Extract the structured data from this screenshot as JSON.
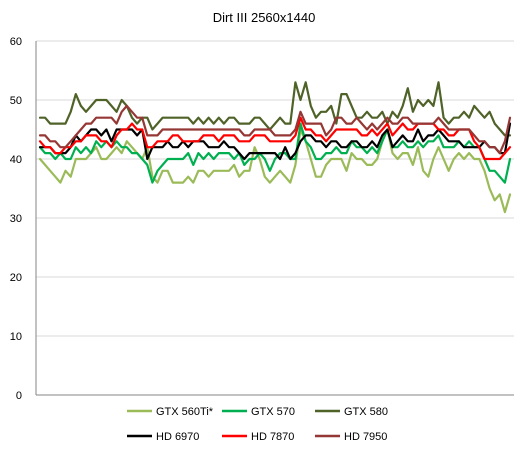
{
  "chart_data": {
    "type": "line",
    "title": "Dirt III 2560x1440",
    "xlabel": "",
    "ylabel": "",
    "ylim": [
      0,
      60
    ],
    "yticks": [
      "0",
      "10",
      "20",
      "30",
      "40",
      "50",
      "60"
    ],
    "grid": "horizontal",
    "legend_position": "bottom",
    "series": [
      {
        "name": "GTX 560Ti*",
        "color": "#9bbb59",
        "values": [
          40,
          39,
          38,
          37,
          36,
          38,
          37,
          40,
          40,
          40,
          41,
          42,
          40,
          40,
          41,
          42,
          41,
          43,
          42,
          41,
          40,
          42,
          37,
          36,
          38,
          38,
          36,
          36,
          36,
          37,
          36,
          38,
          38,
          37,
          38,
          38,
          38,
          38,
          39,
          37,
          38,
          38,
          42,
          40,
          37,
          36,
          37,
          38,
          37,
          36,
          39,
          45,
          43,
          40,
          37,
          37,
          39,
          40,
          40,
          40,
          38,
          41,
          40,
          40,
          39,
          39,
          40,
          43,
          45,
          41,
          40,
          41,
          41,
          39,
          42,
          38,
          37,
          40,
          42,
          40,
          38,
          40,
          41,
          40,
          41,
          40,
          40,
          38,
          35,
          33,
          34,
          31,
          34
        ]
      },
      {
        "name": "GTX 570",
        "color": "#00b050",
        "values": [
          42,
          41,
          41,
          40,
          41,
          40,
          40,
          42,
          41,
          42,
          41,
          43,
          42,
          43,
          42,
          43,
          42,
          42,
          41,
          41,
          40,
          39,
          36,
          38,
          39,
          40,
          40,
          40,
          40,
          41,
          39,
          41,
          40,
          41,
          40,
          41,
          41,
          41,
          40,
          41,
          39,
          40,
          40,
          41,
          40,
          38,
          40,
          41,
          41,
          40,
          40,
          46,
          43,
          42,
          40,
          40,
          41,
          41,
          42,
          41,
          41,
          43,
          42,
          42,
          41,
          42,
          41,
          43,
          45,
          42,
          42,
          43,
          42,
          42,
          43,
          42,
          43,
          43,
          44,
          42,
          42,
          42,
          43,
          42,
          43,
          42,
          42,
          40,
          38,
          38,
          37,
          36,
          40
        ]
      },
      {
        "name": "GTX 580",
        "color": "#4f6228",
        "values": [
          47,
          47,
          46,
          46,
          46,
          46,
          48,
          51,
          49,
          48,
          49,
          50,
          50,
          50,
          49,
          48,
          50,
          49,
          47,
          46,
          47,
          47,
          45,
          46,
          47,
          47,
          47,
          47,
          47,
          47,
          46,
          47,
          46,
          47,
          46,
          47,
          46,
          47,
          47,
          46,
          46,
          46,
          47,
          47,
          46,
          45,
          46,
          47,
          46,
          46,
          53,
          50,
          53,
          49,
          47,
          48,
          48,
          49,
          46,
          51,
          51,
          49,
          47,
          47,
          48,
          47,
          47,
          48,
          46,
          48,
          47,
          49,
          52,
          48,
          50,
          49,
          50,
          49,
          53,
          47,
          46,
          47,
          47,
          48,
          47,
          49,
          48,
          47,
          48,
          46,
          45,
          44,
          44
        ]
      },
      {
        "name": "HD 6970",
        "color": "#000000",
        "values": [
          42,
          42,
          42,
          41,
          41,
          41,
          42,
          44,
          43,
          44,
          45,
          45,
          44,
          45,
          43,
          45,
          45,
          45,
          45,
          44,
          45,
          40,
          42,
          42,
          42,
          43,
          42,
          42,
          43,
          42,
          43,
          43,
          43,
          42,
          42,
          42,
          43,
          42,
          42,
          41,
          40,
          41,
          41,
          41,
          41,
          41,
          41,
          40,
          42,
          40,
          41,
          43,
          44,
          44,
          43,
          43,
          42,
          43,
          43,
          42,
          42,
          43,
          43,
          42,
          42,
          43,
          42,
          44,
          45,
          42,
          43,
          44,
          43,
          43,
          45,
          43,
          44,
          44,
          45,
          44,
          43,
          43,
          43,
          42,
          42,
          42,
          42,
          43,
          42,
          42,
          41,
          41,
          46
        ]
      },
      {
        "name": "HD 7870",
        "color": "#ff0000",
        "values": [
          43,
          42,
          42,
          41,
          41,
          42,
          42,
          43,
          43,
          44,
          44,
          44,
          43,
          43,
          42,
          44,
          45,
          45,
          46,
          45,
          45,
          42,
          42,
          43,
          43,
          43,
          44,
          44,
          43,
          43,
          43,
          43,
          44,
          44,
          44,
          43,
          44,
          44,
          44,
          43,
          43,
          43,
          44,
          44,
          44,
          43,
          43,
          43,
          43,
          43,
          44,
          47,
          45,
          45,
          44,
          44,
          43,
          44,
          45,
          45,
          45,
          45,
          45,
          44,
          44,
          45,
          44,
          45,
          46,
          44,
          45,
          46,
          45,
          45,
          46,
          46,
          46,
          46,
          45,
          45,
          44,
          44,
          45,
          45,
          45,
          43,
          42,
          40,
          40,
          40,
          40,
          41,
          42
        ]
      },
      {
        "name": "HD 7950",
        "color": "#953735",
        "values": [
          44,
          44,
          43,
          43,
          42,
          42,
          43,
          44,
          45,
          46,
          46,
          47,
          47,
          47,
          47,
          46,
          48,
          49,
          48,
          47,
          47,
          44,
          44,
          44,
          45,
          45,
          45,
          45,
          45,
          45,
          45,
          45,
          45,
          45,
          45,
          45,
          45,
          45,
          45,
          45,
          44,
          44,
          45,
          45,
          45,
          45,
          44,
          44,
          44,
          44,
          45,
          48,
          46,
          46,
          46,
          46,
          44,
          45,
          47,
          47,
          46,
          46,
          47,
          46,
          45,
          46,
          45,
          46,
          47,
          46,
          46,
          47,
          47,
          46,
          46,
          46,
          46,
          46,
          47,
          46,
          45,
          45,
          45,
          45,
          45,
          44,
          43,
          43,
          42,
          42,
          41,
          43,
          47
        ]
      }
    ]
  }
}
